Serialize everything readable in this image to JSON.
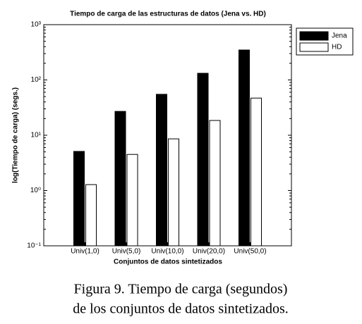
{
  "chart_data": {
    "type": "bar",
    "title": "Tiempo de carga de las estructuras de datos (Jena vs. HD)",
    "x_label": "Conjuntos de datos sintetizados",
    "y_label": "log(Tiempo de carga) (segs.)",
    "categories": [
      "Univ(1,0)",
      "Univ(5,0)",
      "Univ(10,0)",
      "Univ(20,0)",
      "Univ(50,0)"
    ],
    "series": [
      {
        "name": "Jena",
        "color": "#000000",
        "values": [
          5.1,
          27,
          55,
          132,
          348
        ]
      },
      {
        "name": "HD",
        "color": "#ffffff",
        "values": [
          1.28,
          4.5,
          8.6,
          18.5,
          47
        ]
      }
    ],
    "log_scale": true,
    "ylim": [
      0.1,
      1000
    ],
    "yticks": [
      {
        "value": 0.1,
        "label": "10⁻¹"
      },
      {
        "value": 1,
        "label": "10⁰"
      },
      {
        "value": 10,
        "label": "10¹"
      },
      {
        "value": 100,
        "label": "10²"
      },
      {
        "value": 1000,
        "label": "10³"
      }
    ],
    "legend": "upper right"
  },
  "caption": {
    "lines": [
      "Figura 9. Tiempo de carga (segundos)",
      "de los conjuntos de datos sintetizados."
    ]
  }
}
